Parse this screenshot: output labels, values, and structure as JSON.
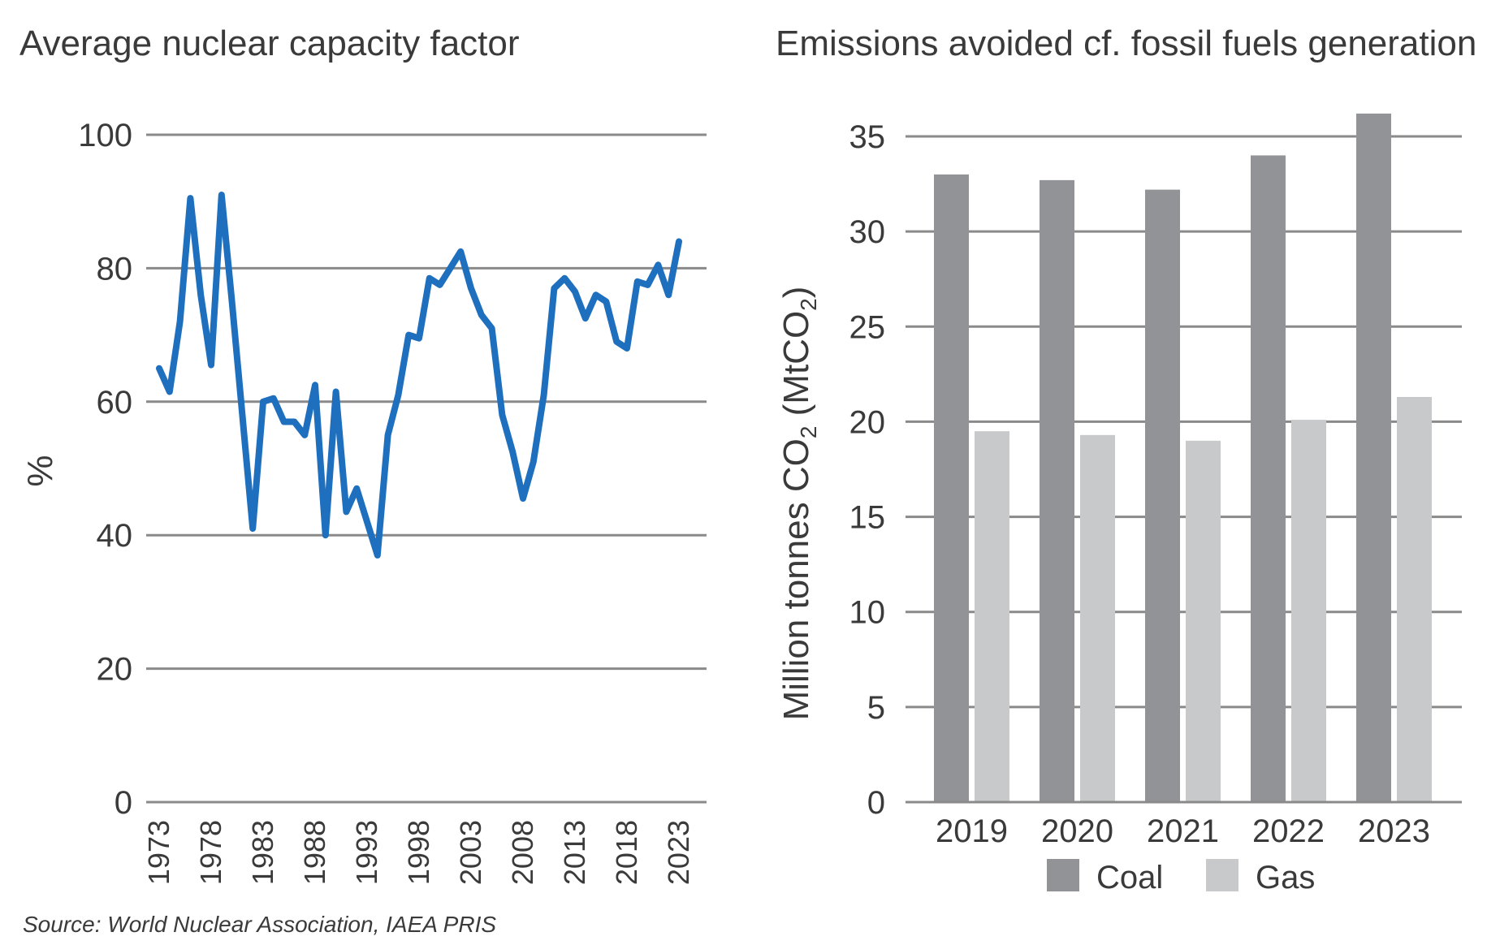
{
  "source": "Source: World Nuclear Association, IAEA PRIS",
  "colors": {
    "line": "#1f6fbf",
    "coal": "#929396",
    "gas": "#c8c9cb",
    "grid": "#8a8a8a"
  },
  "chart_data": [
    {
      "type": "line",
      "title": "Average nuclear capacity factor",
      "xlabel": "",
      "ylabel": "%",
      "ylim": [
        0,
        100
      ],
      "yticks": [
        0,
        20,
        40,
        60,
        80,
        100
      ],
      "xticks": [
        "1973",
        "1978",
        "1983",
        "1988",
        "1993",
        "1998",
        "2003",
        "2008",
        "2013",
        "2018",
        "2023"
      ],
      "grid": true,
      "x": [
        1973,
        1974,
        1975,
        1976,
        1977,
        1978,
        1979,
        1980,
        1981,
        1982,
        1983,
        1984,
        1985,
        1986,
        1987,
        1988,
        1989,
        1990,
        1991,
        1992,
        1993,
        1994,
        1995,
        1996,
        1997,
        1998,
        1999,
        2000,
        2001,
        2002,
        2003,
        2004,
        2005,
        2006,
        2007,
        2008,
        2009,
        2010,
        2011,
        2012,
        2013,
        2014,
        2015,
        2016,
        2017,
        2018,
        2019,
        2020,
        2021,
        2022,
        2023
      ],
      "series": [
        {
          "values": [
            65,
            61.5,
            72,
            90.5,
            76,
            65.5,
            91,
            75,
            58,
            41,
            60,
            60.5,
            57,
            57,
            55,
            62.5,
            40,
            61.5,
            43.5,
            47,
            42,
            37,
            55,
            61,
            70,
            69.5,
            78.5,
            77.5,
            80,
            82.5,
            77,
            73,
            71,
            58,
            52.5,
            45.5,
            51,
            61,
            77,
            78.5,
            76.5,
            72.5,
            76,
            75,
            69,
            68,
            78,
            77.5,
            80.5,
            76,
            84
          ]
        }
      ]
    },
    {
      "type": "bar",
      "title": "Emissions avoided cf. fossil fuels generation",
      "xlabel": "",
      "ylabel": "Million tonnes CO2 (MtCO2)",
      "ylabel_parts": {
        "a": "Million tonnes CO",
        "b": "2",
        "c": " (MtCO",
        "d": "2",
        "e": ")"
      },
      "ylim": [
        0,
        35
      ],
      "yticks": [
        0,
        5,
        10,
        15,
        20,
        25,
        30,
        35
      ],
      "categories": [
        "2019",
        "2020",
        "2021",
        "2022",
        "2023"
      ],
      "grid": true,
      "legend_placement": "bottom",
      "series": [
        {
          "name": "Coal",
          "values": [
            33,
            32.7,
            32.2,
            34,
            36.2
          ]
        },
        {
          "name": "Gas",
          "values": [
            19.5,
            19.3,
            19,
            20.1,
            21.3
          ]
        }
      ]
    }
  ]
}
